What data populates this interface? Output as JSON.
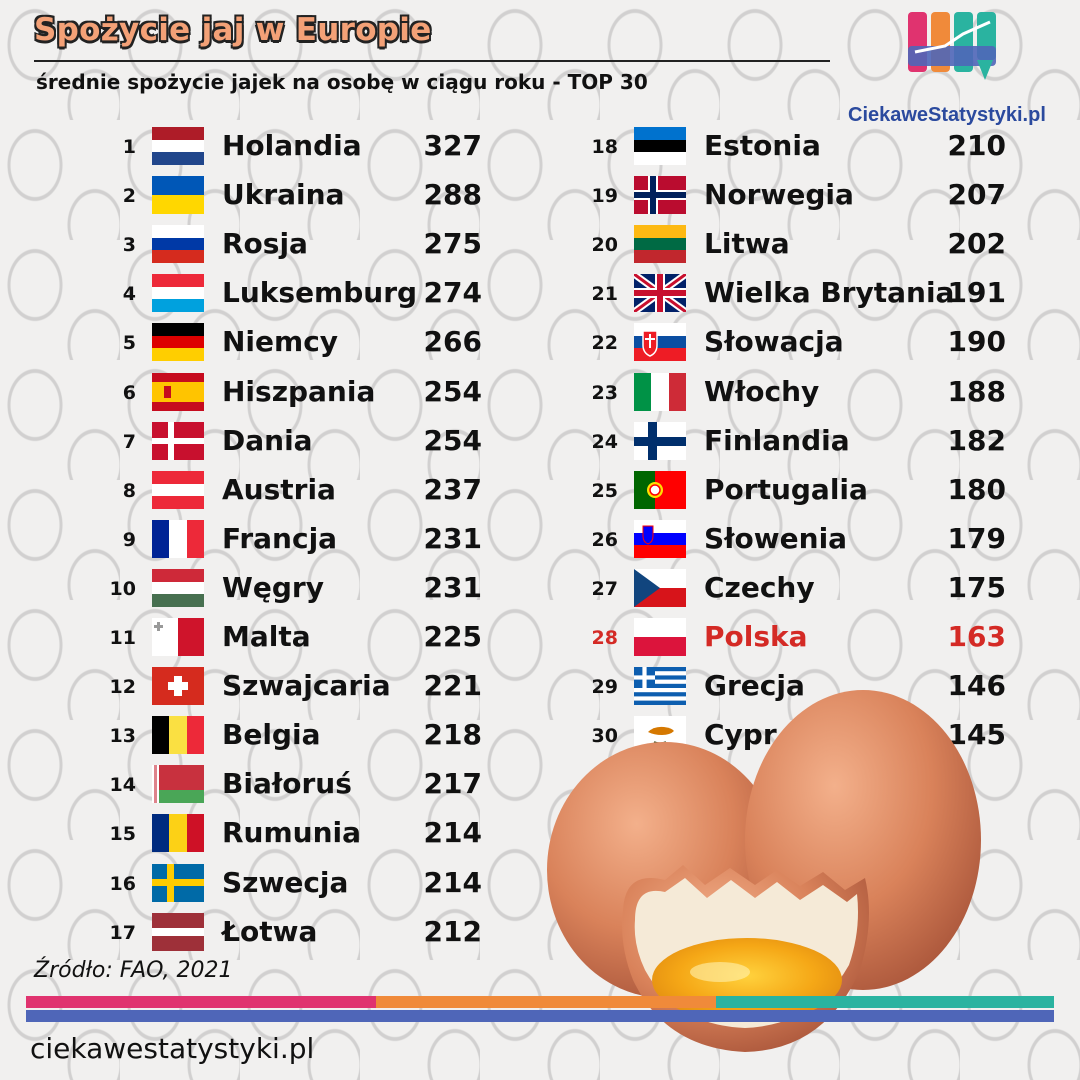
{
  "header": {
    "title": "Spożycie jaj w Europie",
    "subtitle": "średnie spożycie jajek na osobę w ciągu roku - TOP 30"
  },
  "logo": {
    "text": "CiekaweStatystyki.pl"
  },
  "chart_data": {
    "type": "table",
    "title": "Spożycie jaj w Europie",
    "subtitle": "średnie spożycie jajek na osobę w ciągu roku - TOP 30",
    "columns": [
      "rank",
      "country",
      "value"
    ],
    "rows": [
      {
        "rank": "1",
        "country": "Holandia",
        "value": 327,
        "flag": "netherlands-flag"
      },
      {
        "rank": "2",
        "country": "Ukraina",
        "value": 288,
        "flag": "ukraine-flag"
      },
      {
        "rank": "3",
        "country": "Rosja",
        "value": 275,
        "flag": "russia-flag"
      },
      {
        "rank": "4",
        "country": "Luksemburg",
        "value": 274,
        "flag": "luxembourg-flag"
      },
      {
        "rank": "5",
        "country": "Niemcy",
        "value": 266,
        "flag": "germany-flag"
      },
      {
        "rank": "6",
        "country": "Hiszpania",
        "value": 254,
        "flag": "spain-flag"
      },
      {
        "rank": "7",
        "country": "Dania",
        "value": 254,
        "flag": "denmark-flag"
      },
      {
        "rank": "8",
        "country": "Austria",
        "value": 237,
        "flag": "austria-flag"
      },
      {
        "rank": "9",
        "country": "Francja",
        "value": 231,
        "flag": "france-flag"
      },
      {
        "rank": "10",
        "country": "Węgry",
        "value": 231,
        "flag": "hungary-flag"
      },
      {
        "rank": "11",
        "country": "Malta",
        "value": 225,
        "flag": "malta-flag"
      },
      {
        "rank": "12",
        "country": "Szwajcaria",
        "value": 221,
        "flag": "switzerland-flag"
      },
      {
        "rank": "13",
        "country": "Belgia",
        "value": 218,
        "flag": "belgium-flag"
      },
      {
        "rank": "14",
        "country": "Białoruś",
        "value": 217,
        "flag": "belarus-flag"
      },
      {
        "rank": "15",
        "country": "Rumunia",
        "value": 214,
        "flag": "romania-flag"
      },
      {
        "rank": "16",
        "country": "Szwecja",
        "value": 214,
        "flag": "sweden-flag"
      },
      {
        "rank": "17",
        "country": "Łotwa",
        "value": 212,
        "flag": "latvia-flag"
      },
      {
        "rank": "18",
        "country": "Estonia",
        "value": 210,
        "flag": "estonia-flag"
      },
      {
        "rank": "19",
        "country": "Norwegia",
        "value": 207,
        "flag": "norway-flag"
      },
      {
        "rank": "20",
        "country": "Litwa",
        "value": 202,
        "flag": "lithuania-flag"
      },
      {
        "rank": "21",
        "country": "Wielka Brytania",
        "value": 191,
        "flag": "uk-flag"
      },
      {
        "rank": "22",
        "country": "Słowacja",
        "value": 190,
        "flag": "slovakia-flag"
      },
      {
        "rank": "23",
        "country": "Włochy",
        "value": 188,
        "flag": "italy-flag"
      },
      {
        "rank": "24",
        "country": "Finlandia",
        "value": 182,
        "flag": "finland-flag"
      },
      {
        "rank": "25",
        "country": "Portugalia",
        "value": 180,
        "flag": "portugal-flag"
      },
      {
        "rank": "26",
        "country": "Słowenia",
        "value": 179,
        "flag": "slovenia-flag"
      },
      {
        "rank": "27",
        "country": "Czechy",
        "value": 175,
        "flag": "czechia-flag"
      },
      {
        "rank": "28",
        "country": "Polska",
        "value": 163,
        "flag": "poland-flag",
        "highlight": true
      },
      {
        "rank": "29",
        "country": "Grecja",
        "value": 146,
        "flag": "greece-flag"
      },
      {
        "rank": "30",
        "country": "Cypr",
        "value": 145,
        "flag": "cyprus-flag"
      }
    ]
  },
  "colors": {
    "highlight": "#d42a25",
    "title_fill": "#f3a177",
    "bar_pink": "#e0336f",
    "bar_orange": "#f08a3a",
    "bar_teal": "#2ab3a0",
    "bar_blue": "#4f66b8",
    "logo_text": "#2b4a9e"
  },
  "footer": {
    "source": "Źródło: FAO, 2021",
    "url": "ciekawestatystyki.pl"
  }
}
